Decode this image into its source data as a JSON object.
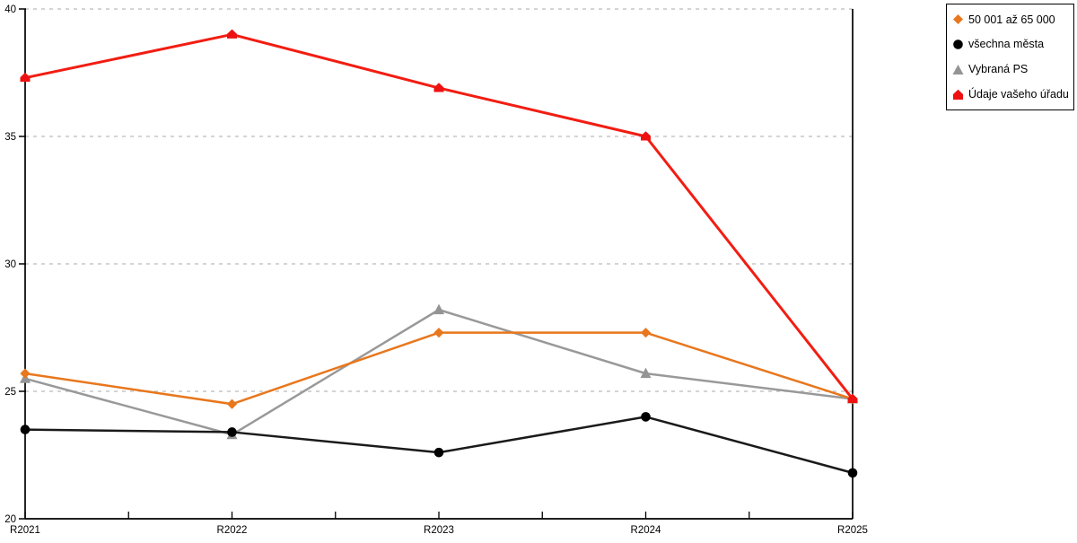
{
  "chart_data": {
    "type": "line",
    "categories": [
      "R2021",
      "R2022",
      "R2023",
      "R2024",
      "R2025"
    ],
    "series": [
      {
        "name": "50 001 až 65 000",
        "marker": "diamond",
        "color": "#e8771d",
        "line_color": "#e8771d",
        "values": [
          25.7,
          24.5,
          27.3,
          27.3,
          24.7
        ]
      },
      {
        "name": "všechna města",
        "marker": "circle",
        "color": "#000000",
        "line_color": "#1a1a1a",
        "values": [
          23.5,
          23.4,
          22.6,
          24.0,
          21.8
        ]
      },
      {
        "name": "Vybraná PS",
        "marker": "triangle",
        "color": "#949494",
        "line_color": "#999999",
        "values": [
          25.5,
          23.3,
          28.2,
          25.7,
          24.7
        ]
      },
      {
        "name": "Údaje vašeho úřadu",
        "marker": "house",
        "color": "#ee1111",
        "line_color": "#f21d12",
        "values": [
          37.3,
          39.0,
          36.9,
          35.0,
          24.7
        ]
      }
    ],
    "ylim": [
      20,
      40
    ],
    "yticks": [
      20,
      25,
      30,
      35,
      40
    ],
    "grid": "horizontal-dashed",
    "grid_color": "#c6c6c6",
    "axis_color": "#000000",
    "legend_position": "top-right"
  }
}
